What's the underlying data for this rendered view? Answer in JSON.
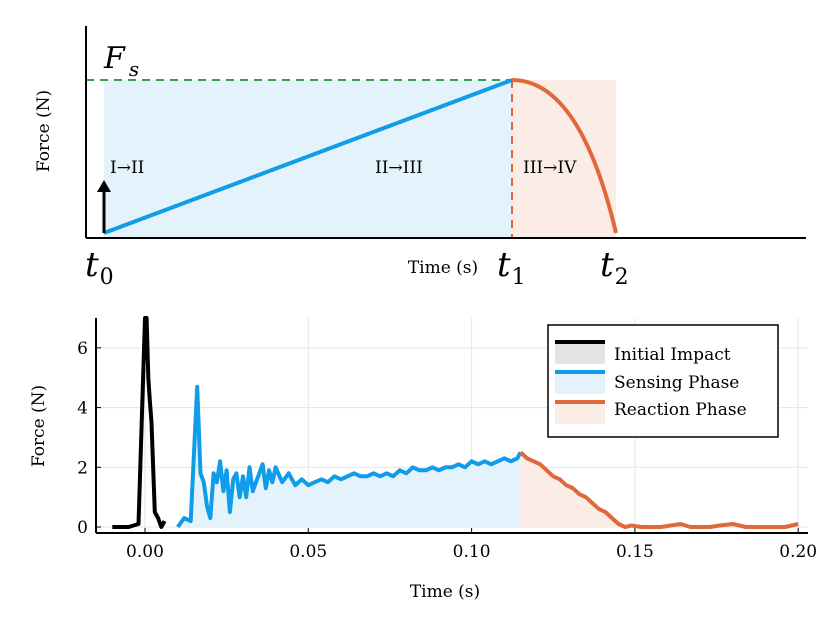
{
  "chart_data": [
    {
      "type": "line",
      "title": "",
      "ylabel": "Force (N)",
      "xlabel": "Time (s)",
      "xlim": [
        0,
        1
      ],
      "ylim": [
        -0.03,
        1.0
      ],
      "tick_labels": {
        "t0": {
          "base": "t",
          "sub": "0"
        },
        "t1": {
          "base": "t",
          "sub": "1"
        },
        "t2": {
          "base": "t",
          "sub": "2"
        }
      },
      "threshold": {
        "base": "F",
        "sub": "s",
        "value": 1.0,
        "color": "#3c9c4c",
        "style": "dashed"
      },
      "annotations": [
        "I→II",
        "II→III",
        "III→IV"
      ],
      "series": [
        {
          "kind": "ramp",
          "color": "#0f9ce8",
          "x": [
            0.0,
            0.56
          ],
          "y": [
            0.0,
            1.0
          ]
        },
        {
          "kind": "decay",
          "color": "#e0693c",
          "x": [
            0.56,
            0.7
          ],
          "y": [
            1.0,
            0.0
          ]
        },
        {
          "kind": "impulse-arrow",
          "color": "#000000",
          "x": [
            0.0,
            0.0
          ],
          "y": [
            0.0,
            0.33
          ]
        }
      ],
      "shaded_regions": [
        {
          "x": [
            0.0,
            0.56
          ],
          "color": "#e3f2fb"
        },
        {
          "x": [
            0.56,
            0.7
          ],
          "color": "#fbece6"
        }
      ],
      "grid": false
    },
    {
      "type": "line",
      "title": "",
      "xlabel": "Time (s)",
      "ylabel": "Force (N)",
      "xlim": [
        -0.015,
        0.203
      ],
      "ylim": [
        -0.2,
        7.0
      ],
      "xticks": [
        0.0,
        0.05,
        0.1,
        0.15,
        0.2
      ],
      "xtick_labels": [
        "0.00",
        "0.05",
        "0.10",
        "0.15",
        "0.20"
      ],
      "yticks": [
        0,
        2,
        4,
        6
      ],
      "ytick_labels": [
        "0",
        "2",
        "4",
        "6"
      ],
      "grid": true,
      "legend": "top-right",
      "series": [
        {
          "name": "Initial Impact",
          "color": "#000000",
          "x": [
            -0.01,
            -0.005,
            -0.002,
            0.0,
            0.0005,
            0.001,
            0.0015,
            0.002,
            0.003,
            0.004,
            0.005,
            0.006
          ],
          "y": [
            0.0,
            0.0,
            0.1,
            7.2,
            7.2,
            5.0,
            4.2,
            3.5,
            0.5,
            0.3,
            0.0,
            0.2
          ]
        },
        {
          "name": "Sensing Phase",
          "color": "#0f9ce8",
          "fill": "#e3f2fb",
          "x": [
            0.01,
            0.012,
            0.014,
            0.016,
            0.017,
            0.018,
            0.019,
            0.02,
            0.021,
            0.022,
            0.023,
            0.024,
            0.025,
            0.026,
            0.027,
            0.028,
            0.029,
            0.03,
            0.031,
            0.032,
            0.033,
            0.034,
            0.035,
            0.036,
            0.037,
            0.038,
            0.039,
            0.04,
            0.042,
            0.044,
            0.046,
            0.048,
            0.05,
            0.052,
            0.054,
            0.056,
            0.058,
            0.06,
            0.062,
            0.064,
            0.066,
            0.068,
            0.07,
            0.072,
            0.074,
            0.076,
            0.078,
            0.08,
            0.082,
            0.084,
            0.086,
            0.088,
            0.09,
            0.092,
            0.094,
            0.096,
            0.098,
            0.1,
            0.102,
            0.104,
            0.106,
            0.108,
            0.11,
            0.112,
            0.114,
            0.115
          ],
          "y": [
            0.0,
            0.3,
            0.2,
            4.7,
            1.8,
            1.5,
            0.7,
            0.3,
            1.8,
            1.5,
            2.2,
            1.2,
            1.9,
            0.5,
            1.6,
            1.8,
            1.0,
            1.7,
            1.0,
            2.0,
            1.2,
            1.5,
            1.8,
            2.1,
            1.3,
            1.9,
            1.5,
            2.0,
            1.5,
            1.8,
            1.4,
            1.6,
            1.4,
            1.5,
            1.6,
            1.5,
            1.7,
            1.6,
            1.7,
            1.8,
            1.7,
            1.7,
            1.8,
            1.7,
            1.8,
            1.7,
            1.9,
            1.8,
            2.0,
            1.9,
            1.9,
            2.0,
            1.9,
            2.0,
            2.0,
            2.1,
            2.0,
            2.2,
            2.1,
            2.2,
            2.1,
            2.2,
            2.3,
            2.2,
            2.3,
            2.5
          ]
        },
        {
          "name": "Reaction Phase",
          "color": "#e0693c",
          "fill": "#fbece6",
          "x": [
            0.115,
            0.117,
            0.119,
            0.121,
            0.123,
            0.125,
            0.127,
            0.129,
            0.131,
            0.133,
            0.135,
            0.137,
            0.139,
            0.141,
            0.143,
            0.145,
            0.147,
            0.149,
            0.152,
            0.155,
            0.158,
            0.161,
            0.164,
            0.167,
            0.17,
            0.173,
            0.176,
            0.18,
            0.184,
            0.188,
            0.192,
            0.196,
            0.2
          ],
          "y": [
            2.5,
            2.3,
            2.2,
            2.1,
            1.9,
            1.7,
            1.6,
            1.4,
            1.3,
            1.1,
            1.0,
            0.8,
            0.6,
            0.5,
            0.3,
            0.1,
            0.0,
            0.05,
            0.0,
            0.0,
            0.0,
            0.05,
            0.1,
            0.0,
            0.0,
            0.0,
            0.05,
            0.1,
            0.0,
            0.0,
            0.0,
            0.0,
            0.1
          ]
        }
      ]
    }
  ]
}
